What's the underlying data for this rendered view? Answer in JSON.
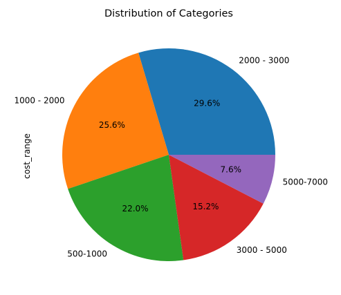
{
  "chart_data": {
    "type": "pie",
    "title": "Distribution of Categories",
    "ylabel": "cost_range",
    "start_angle_deg": 0,
    "direction": "counterclockwise",
    "slices": [
      {
        "label": "2000 - 3000",
        "value": 29.6,
        "pct_label": "29.6%",
        "color": "#1f77b4"
      },
      {
        "label": "1000 - 2000",
        "value": 25.6,
        "pct_label": "25.6%",
        "color": "#ff7f0e"
      },
      {
        "label": "500-1000",
        "value": 22.0,
        "pct_label": "22.0%",
        "color": "#2ca02c"
      },
      {
        "label": "3000 - 5000",
        "value": 15.2,
        "pct_label": "15.2%",
        "color": "#d62728"
      },
      {
        "label": "5000-7000",
        "value": 7.6,
        "pct_label": "7.6%",
        "color": "#9467bd"
      }
    ]
  }
}
